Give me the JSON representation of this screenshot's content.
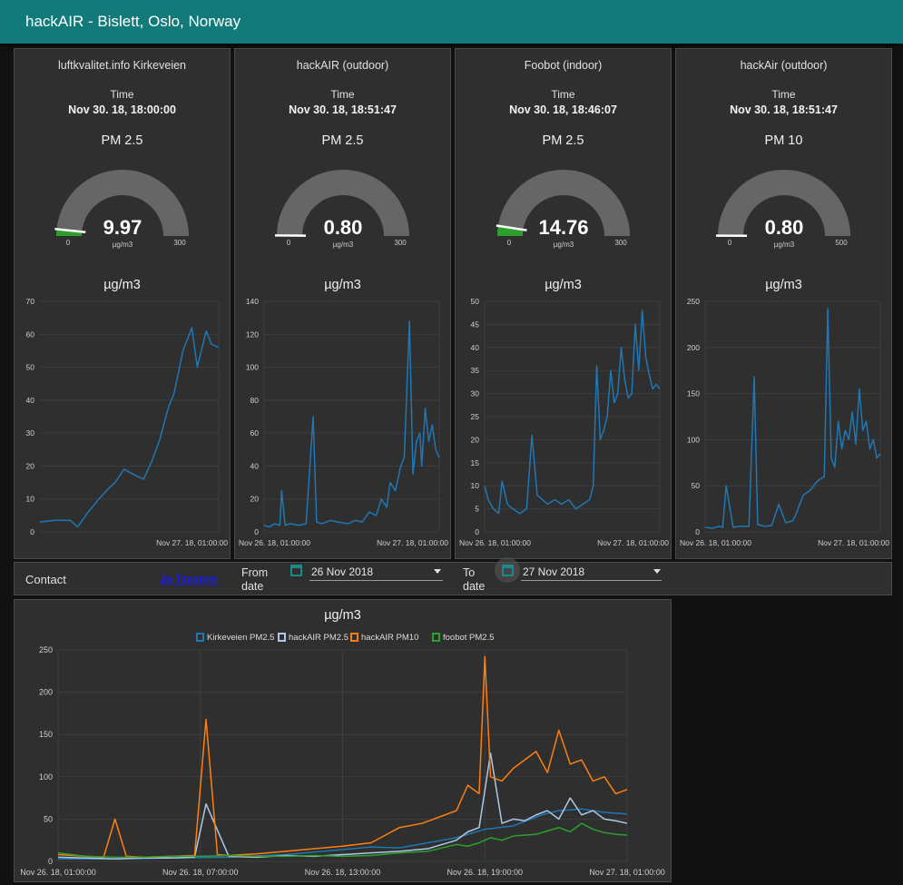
{
  "app": {
    "title": "hackAIR - Bislett, Oslo, Norway"
  },
  "panels": [
    {
      "title": "luftkvalitet.info Kirkeveien",
      "time_label": "Time",
      "time_value": "Nov 30. 18, 18:00:00",
      "metric": "PM 2.5",
      "gauge": {
        "value": 9.97,
        "value_text": "9.97",
        "min": 0,
        "max": 300,
        "min_text": "0",
        "max_text": "300",
        "unit": "µg/m3"
      },
      "chart_title": "µg/m3"
    },
    {
      "title": "hackAIR (outdoor)",
      "time_label": "Time",
      "time_value": "Nov 30. 18, 18:51:47",
      "metric": "PM 2.5",
      "gauge": {
        "value": 0.8,
        "value_text": "0.80",
        "min": 0,
        "max": 300,
        "min_text": "0",
        "max_text": "300",
        "unit": "µg/m3"
      },
      "chart_title": "µg/m3"
    },
    {
      "title": "Foobot (indoor)",
      "time_label": "Time",
      "time_value": "Nov 30. 18, 18:46:07",
      "metric": "PM 2.5",
      "gauge": {
        "value": 14.76,
        "value_text": "14.76",
        "min": 0,
        "max": 300,
        "min_text": "0",
        "max_text": "300",
        "unit": "µg/m3"
      },
      "chart_title": "µg/m3"
    },
    {
      "title": "hackAir (outdoor)",
      "time_label": "Time",
      "time_value": "Nov 30. 18, 18:51:47",
      "metric": "PM 10",
      "gauge": {
        "value": 0.8,
        "value_text": "0.80",
        "min": 0,
        "max": 500,
        "min_text": "0",
        "max_text": "500",
        "unit": "µg/m3"
      },
      "chart_title": "µg/m3"
    }
  ],
  "contact": {
    "label": "Contact",
    "link_text": "Jo Torsmyr"
  },
  "date_filter": {
    "from_label_1": "From",
    "from_label_2": "date",
    "from_value": "26 Nov 2018",
    "to_label_1": "To",
    "to_label_2": "date",
    "to_value": "27 Nov 2018"
  },
  "colors": {
    "accent": "#137a7a",
    "blue": "#1f77b4",
    "orange": "#ff7f0e",
    "green": "#2ca02c",
    "silver": "#aec7e8",
    "gauge_fill": "#2ca02c",
    "gauge_bg": "#666666"
  },
  "chart_data": [
    {
      "type": "line",
      "title": "µg/m3",
      "ylim": [
        0,
        70
      ],
      "yticks": [
        "0",
        "10",
        "20",
        "30",
        "40",
        "50",
        "60",
        "70"
      ],
      "xticks": [
        "Nov 27. 18, 01:00:00"
      ],
      "xtick_pos": [
        1.0
      ],
      "xrange": [
        0,
        1.0
      ],
      "series": [
        {
          "color": "#1f77b4",
          "x": [
            0.0,
            0.08,
            0.17,
            0.21,
            0.27,
            0.33,
            0.38,
            0.42,
            0.47,
            0.54,
            0.58,
            0.63,
            0.67,
            0.72,
            0.75,
            0.8,
            0.85,
            0.88,
            0.93,
            0.96,
            1.0
          ],
          "y": [
            3,
            3.5,
            3.5,
            1.5,
            6,
            10,
            13,
            15,
            19,
            17,
            16,
            22,
            28,
            38,
            42,
            55,
            62,
            50,
            61,
            57,
            56
          ]
        }
      ]
    },
    {
      "type": "line",
      "title": "µg/m3",
      "ylim": [
        0,
        140
      ],
      "yticks": [
        "0",
        "20",
        "40",
        "60",
        "80",
        "100",
        "120",
        "140"
      ],
      "xticks": [
        "Nov 26. 18, 01:00:00",
        "Nov 27. 18, 01:00:00"
      ],
      "xtick_pos": [
        0,
        1
      ],
      "xrange": [
        0,
        1
      ],
      "series": [
        {
          "color": "#1f77b4",
          "x": [
            0,
            0.03,
            0.06,
            0.09,
            0.1,
            0.12,
            0.15,
            0.2,
            0.24,
            0.28,
            0.3,
            0.33,
            0.38,
            0.42,
            0.48,
            0.52,
            0.56,
            0.6,
            0.64,
            0.67,
            0.7,
            0.72,
            0.75,
            0.78,
            0.8,
            0.83,
            0.85,
            0.87,
            0.89,
            0.9,
            0.92,
            0.94,
            0.96,
            0.98,
            1.0
          ],
          "y": [
            4,
            3,
            5,
            4,
            25,
            4,
            5,
            4,
            5,
            70,
            6,
            5,
            7,
            6,
            5,
            7,
            6,
            12,
            10,
            20,
            15,
            30,
            25,
            40,
            45,
            128,
            35,
            55,
            60,
            40,
            75,
            55,
            65,
            50,
            45
          ]
        }
      ]
    },
    {
      "type": "line",
      "title": "µg/m3",
      "ylim": [
        0,
        50
      ],
      "yticks": [
        "0",
        "5",
        "10",
        "15",
        "20",
        "25",
        "30",
        "35",
        "40",
        "45",
        "50"
      ],
      "xticks": [
        "Nov 26. 18, 01:00:00",
        "Nov 27. 18, 01:00:00"
      ],
      "xtick_pos": [
        0,
        1
      ],
      "xrange": [
        0,
        1
      ],
      "series": [
        {
          "color": "#1f77b4",
          "x": [
            0,
            0.02,
            0.05,
            0.08,
            0.1,
            0.13,
            0.16,
            0.2,
            0.24,
            0.27,
            0.3,
            0.33,
            0.36,
            0.4,
            0.44,
            0.48,
            0.52,
            0.56,
            0.6,
            0.62,
            0.64,
            0.66,
            0.68,
            0.7,
            0.72,
            0.74,
            0.76,
            0.78,
            0.8,
            0.82,
            0.84,
            0.86,
            0.88,
            0.9,
            0.92,
            0.94,
            0.96,
            0.98,
            1.0
          ],
          "y": [
            10,
            7,
            5,
            4,
            11,
            6,
            5,
            4,
            5,
            21,
            8,
            7,
            6,
            7,
            6,
            7,
            5,
            6,
            7,
            10,
            36,
            20,
            22,
            25,
            35,
            28,
            30,
            40,
            33,
            29,
            30,
            45,
            35,
            48,
            38,
            34,
            31,
            32,
            31
          ]
        }
      ]
    },
    {
      "type": "line",
      "title": "µg/m3",
      "ylim": [
        0,
        250
      ],
      "yticks": [
        "0",
        "50",
        "100",
        "150",
        "200",
        "250"
      ],
      "xticks": [
        "Nov 26. 18, 01:00:00",
        "Nov 27. 18, 01:00:00"
      ],
      "xtick_pos": [
        0,
        1
      ],
      "xrange": [
        0,
        1
      ],
      "series": [
        {
          "color": "#1f77b4",
          "x": [
            0,
            0.04,
            0.08,
            0.1,
            0.12,
            0.16,
            0.2,
            0.25,
            0.28,
            0.3,
            0.34,
            0.38,
            0.42,
            0.46,
            0.5,
            0.52,
            0.56,
            0.6,
            0.64,
            0.68,
            0.7,
            0.72,
            0.74,
            0.76,
            0.78,
            0.8,
            0.82,
            0.84,
            0.86,
            0.88,
            0.9,
            0.92,
            0.94,
            0.96,
            0.98,
            1.0
          ],
          "y": [
            5,
            4,
            6,
            5,
            50,
            5,
            6,
            6,
            168,
            8,
            6,
            7,
            30,
            10,
            12,
            20,
            40,
            45,
            55,
            60,
            242,
            80,
            70,
            120,
            90,
            110,
            100,
            130,
            95,
            155,
            110,
            120,
            90,
            100,
            80,
            85
          ]
        }
      ]
    },
    {
      "type": "line",
      "title": "µg/m3",
      "ylim": [
        0,
        250
      ],
      "yticks": [
        "0",
        "50",
        "100",
        "150",
        "200",
        "250"
      ],
      "legend_position": "top-center",
      "xticks": [
        "Nov 26. 18, 01:00:00",
        "Nov 26. 18, 07:00:00",
        "Nov 26. 18, 13:00:00",
        "Nov 26. 18, 19:00:00",
        "Nov 27. 18, 01:00:00"
      ],
      "xtick_pos": [
        0,
        0.25,
        0.5,
        0.75,
        1
      ],
      "xrange": [
        0,
        1
      ],
      "series": [
        {
          "name": "Kirkeveien PM2.5",
          "color": "#1f77b4",
          "x": [
            0,
            0.1,
            0.2,
            0.3,
            0.4,
            0.5,
            0.55,
            0.6,
            0.65,
            0.7,
            0.75,
            0.8,
            0.85,
            0.88,
            0.92,
            0.96,
            1.0
          ],
          "y": [
            3,
            3,
            4,
            5,
            8,
            14,
            17,
            16,
            22,
            28,
            38,
            42,
            55,
            60,
            62,
            58,
            56
          ]
        },
        {
          "name": "hackAIR PM2.5",
          "color": "#aec7e8",
          "x": [
            0,
            0.05,
            0.1,
            0.15,
            0.2,
            0.24,
            0.26,
            0.3,
            0.35,
            0.4,
            0.45,
            0.5,
            0.55,
            0.6,
            0.65,
            0.7,
            0.72,
            0.74,
            0.76,
            0.78,
            0.8,
            0.82,
            0.84,
            0.86,
            0.88,
            0.9,
            0.92,
            0.94,
            0.96,
            0.98,
            1.0
          ],
          "y": [
            5,
            4,
            3,
            4,
            4,
            5,
            68,
            6,
            5,
            7,
            6,
            8,
            10,
            12,
            15,
            25,
            35,
            40,
            128,
            45,
            50,
            48,
            55,
            60,
            50,
            75,
            55,
            60,
            50,
            48,
            45
          ]
        },
        {
          "name": "hackAIR PM10",
          "color": "#ff7f0e",
          "x": [
            0,
            0.05,
            0.08,
            0.1,
            0.12,
            0.15,
            0.2,
            0.24,
            0.26,
            0.28,
            0.3,
            0.35,
            0.4,
            0.45,
            0.5,
            0.55,
            0.6,
            0.64,
            0.68,
            0.7,
            0.72,
            0.74,
            0.75,
            0.76,
            0.78,
            0.8,
            0.82,
            0.84,
            0.86,
            0.88,
            0.9,
            0.92,
            0.94,
            0.96,
            0.98,
            1.0
          ],
          "y": [
            8,
            6,
            5,
            50,
            6,
            5,
            6,
            7,
            168,
            8,
            7,
            9,
            12,
            15,
            18,
            22,
            40,
            45,
            55,
            60,
            90,
            80,
            242,
            100,
            95,
            110,
            120,
            130,
            105,
            155,
            115,
            120,
            95,
            100,
            80,
            85
          ]
        },
        {
          "name": "foobot PM2.5",
          "color": "#2ca02c",
          "x": [
            0,
            0.05,
            0.1,
            0.15,
            0.2,
            0.25,
            0.3,
            0.35,
            0.4,
            0.45,
            0.5,
            0.55,
            0.6,
            0.65,
            0.7,
            0.72,
            0.74,
            0.76,
            0.78,
            0.8,
            0.84,
            0.88,
            0.9,
            0.92,
            0.94,
            0.96,
            0.98,
            1.0
          ],
          "y": [
            10,
            6,
            5,
            5,
            6,
            6,
            7,
            6,
            6,
            7,
            6,
            7,
            10,
            12,
            20,
            18,
            22,
            28,
            25,
            30,
            32,
            40,
            35,
            45,
            38,
            34,
            32,
            31
          ]
        }
      ]
    }
  ]
}
